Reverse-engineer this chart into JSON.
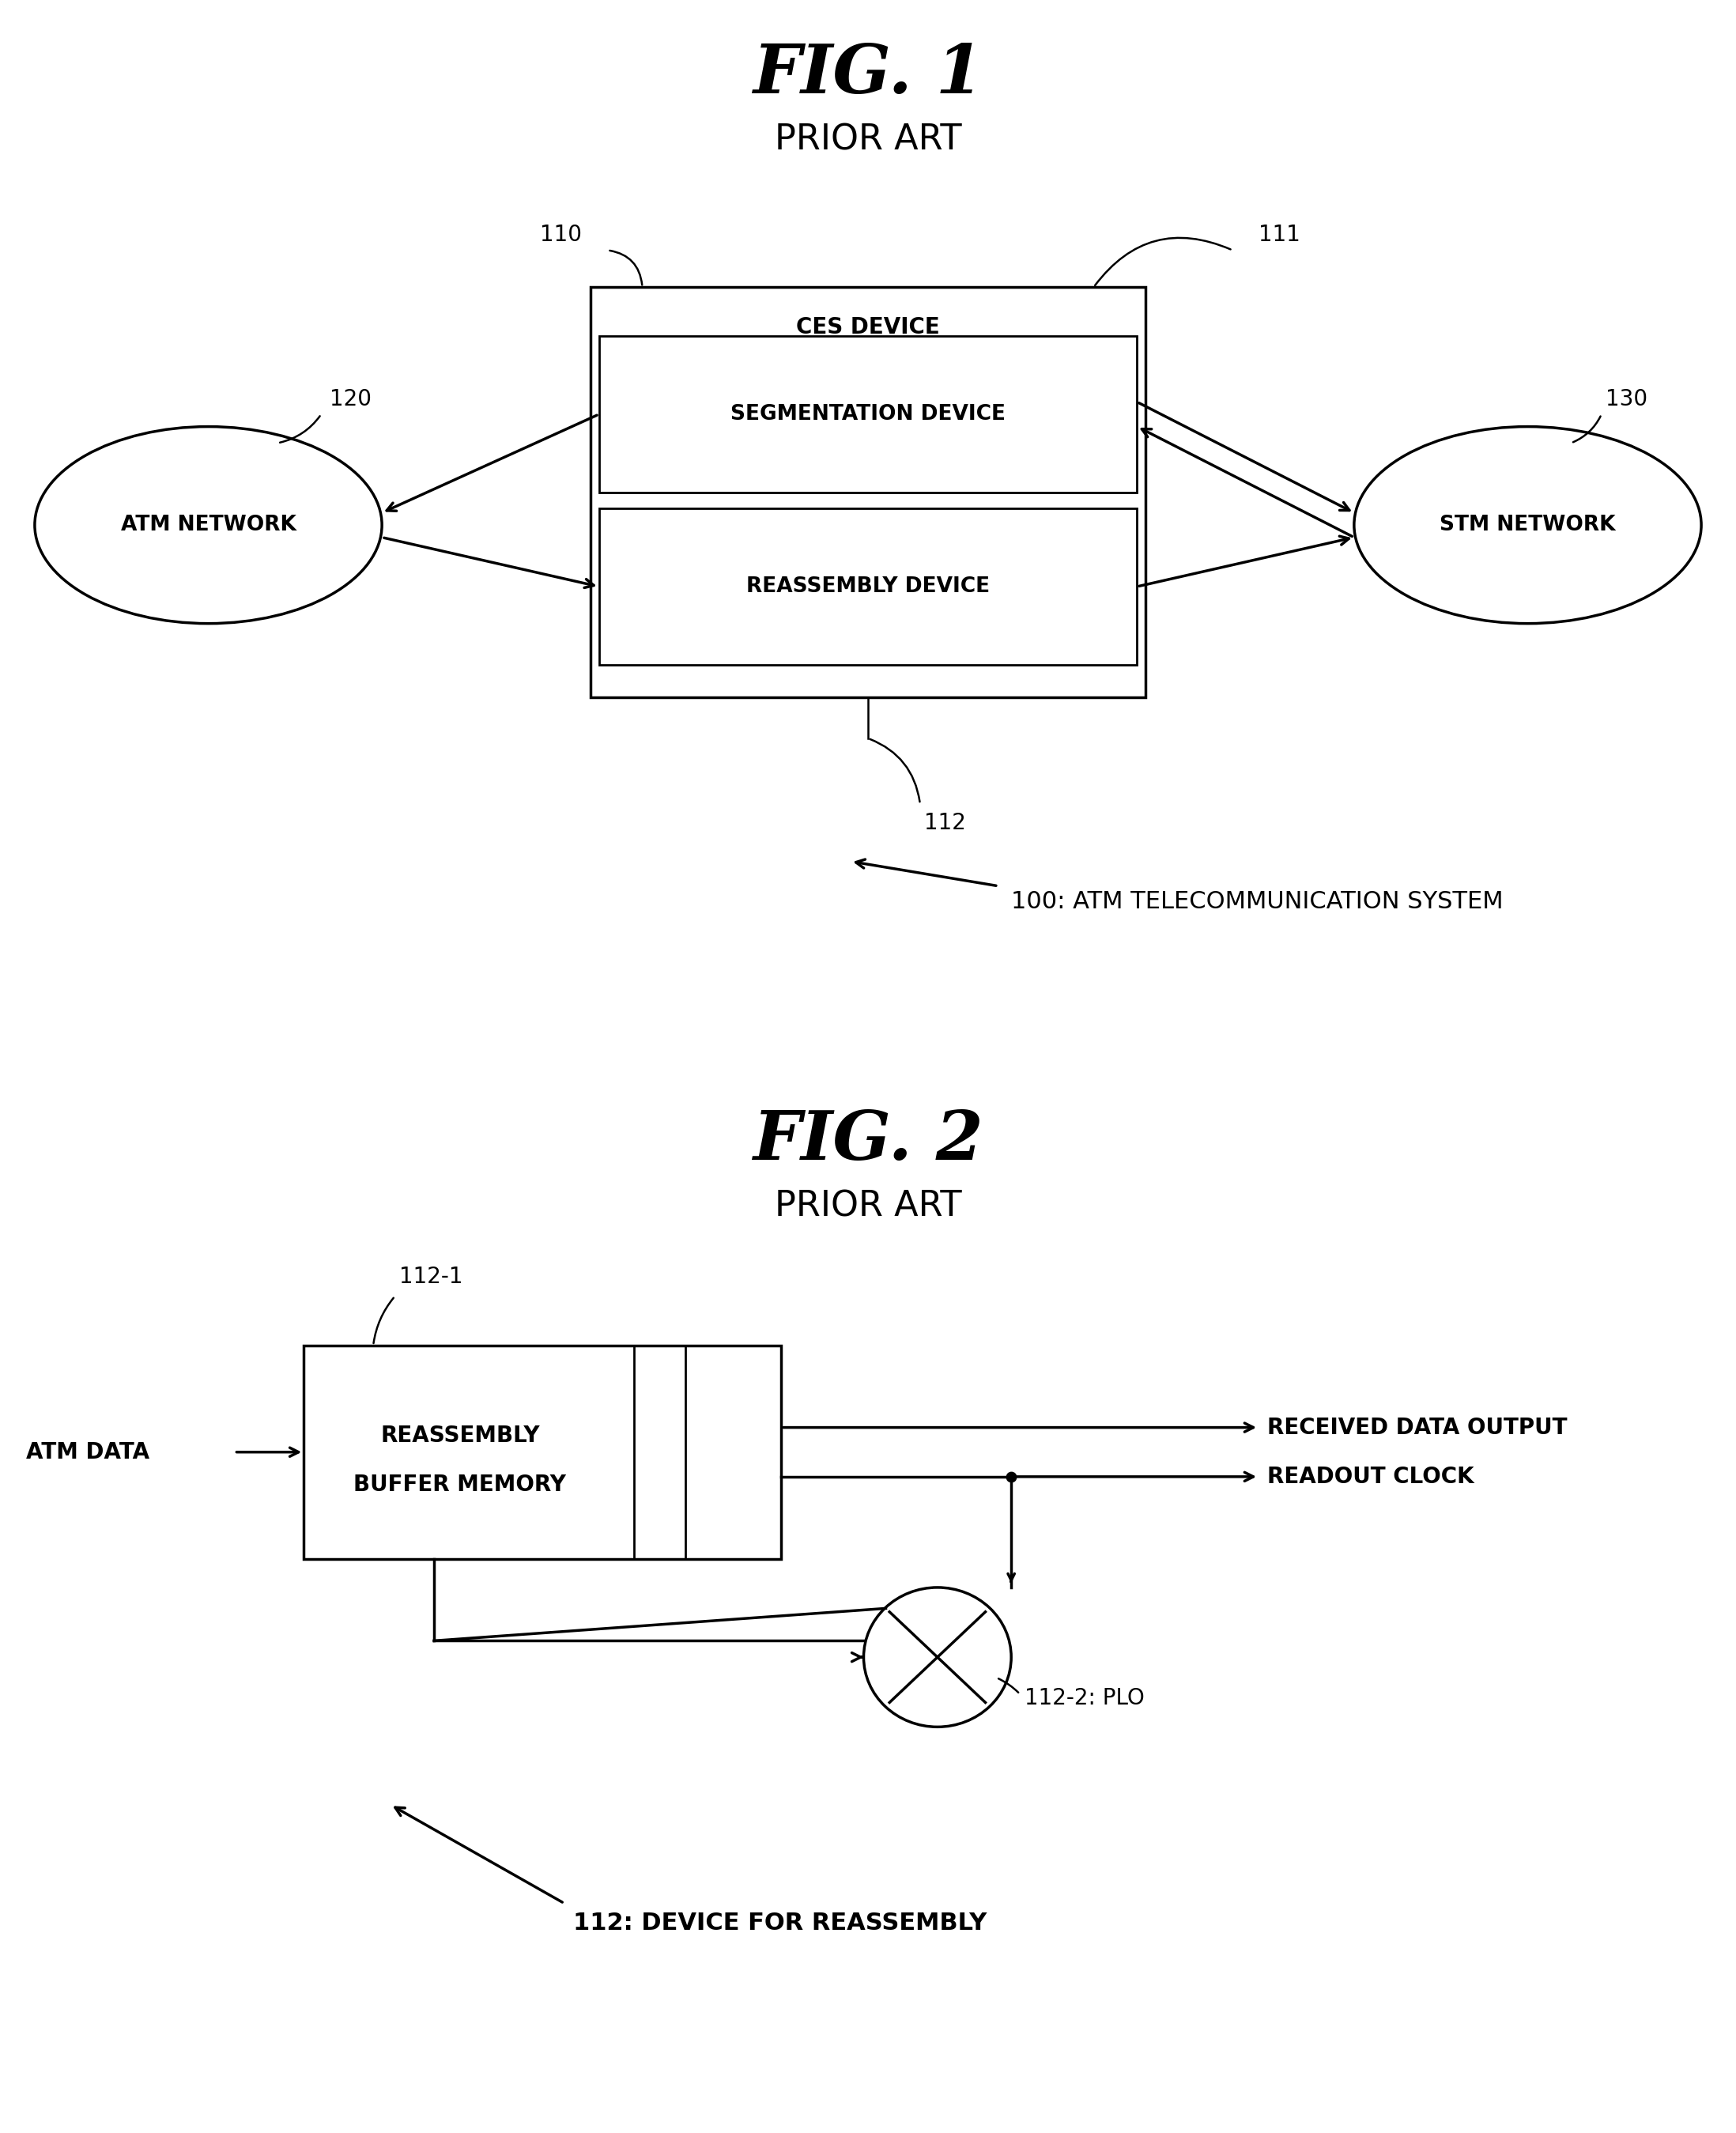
{
  "fig1_title": "FIG. 1",
  "fig1_subtitle": "PRIOR ART",
  "fig2_title": "FIG. 2",
  "fig2_subtitle": "PRIOR ART",
  "bg_color": "#ffffff",
  "text_color": "#000000",
  "fig1": {
    "ces_label": "CES DEVICE",
    "seg_label": "SEGMENTATION DEVICE",
    "rea_label": "REASSEMBLY DEVICE",
    "atm_label": "ATM NETWORK",
    "stm_label": "STM NETWORK",
    "ref110": "110",
    "ref111": "111",
    "ref112": "112",
    "ref120": "120",
    "ref130": "130",
    "sys_label": "100: ATM TELECOMMUNICATION SYSTEM"
  },
  "fig2": {
    "buf_label1": "REASSEMBLY",
    "buf_label2": "BUFFER MEMORY",
    "atm_data_label": "ATM DATA",
    "out_label1": "RECEIVED DATA OUTPUT",
    "out_label2": "READOUT CLOCK",
    "plo_label": "112-2: PLO",
    "ref112_1": "112-1",
    "ref112": "112: DEVICE FOR REASSEMBLY"
  }
}
